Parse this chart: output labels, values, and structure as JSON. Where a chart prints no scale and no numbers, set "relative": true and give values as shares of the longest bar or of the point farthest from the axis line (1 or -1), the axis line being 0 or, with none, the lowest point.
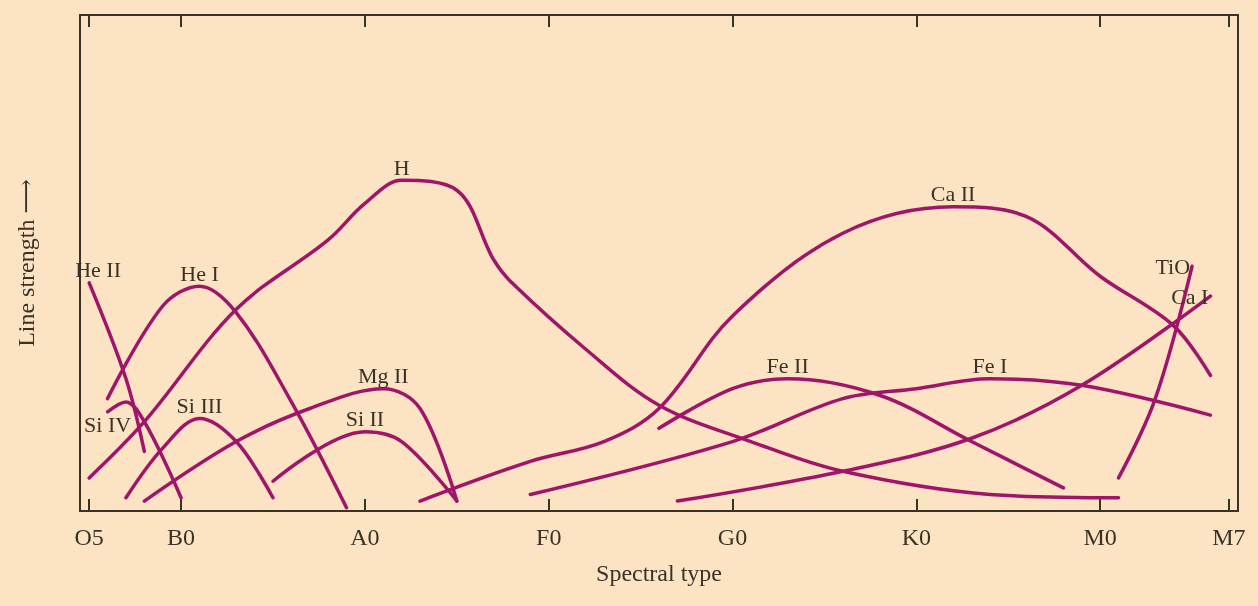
{
  "chart_data": {
    "type": "line",
    "relative": true,
    "xlabel": "Spectral type",
    "ylabel": "Line strength ⟶",
    "categories": [
      "O5",
      null,
      null,
      null,
      null,
      "B0",
      null,
      null,
      null,
      null,
      null,
      null,
      null,
      null,
      null,
      "A0",
      null,
      null,
      null,
      null,
      null,
      null,
      null,
      null,
      null,
      "F0",
      null,
      null,
      null,
      null,
      null,
      null,
      null,
      null,
      null,
      "G0",
      null,
      null,
      null,
      null,
      null,
      null,
      null,
      null,
      null,
      "K0",
      null,
      null,
      null,
      null,
      null,
      null,
      null,
      null,
      null,
      "M0",
      null,
      null,
      null,
      null,
      null,
      null,
      "M7"
    ],
    "grid": false,
    "legend": false,
    "line_style": "solid",
    "marker": "none",
    "series": [
      {
        "name": "He II",
        "color": "#a0146a",
        "values": [
          0.69,
          null,
          0.4,
          0.18,
          null,
          null,
          null,
          null,
          null,
          null,
          null,
          null,
          null,
          null,
          null,
          null,
          null,
          null,
          null,
          null,
          null,
          null,
          null,
          null,
          null,
          null,
          null,
          null,
          null,
          null,
          null,
          null,
          null,
          null,
          null,
          null,
          null,
          null,
          null,
          null,
          null,
          null,
          null,
          null,
          null,
          null,
          null,
          null,
          null,
          null,
          null,
          null,
          null,
          null,
          null,
          null,
          null,
          null,
          null,
          null,
          null,
          null,
          null
        ]
      },
      {
        "name": "He I",
        "color": "#a0146a",
        "values": [
          null,
          0.34,
          null,
          null,
          0.62,
          null,
          0.68,
          null,
          0.6,
          null,
          null,
          0.33,
          null,
          null,
          0.01,
          null,
          null,
          null,
          null,
          null,
          null,
          null,
          null,
          null,
          null,
          null,
          null,
          null,
          null,
          null,
          null,
          null,
          null,
          null,
          null,
          null,
          null,
          null,
          null,
          null,
          null,
          null,
          null,
          null,
          null,
          null,
          null,
          null,
          null,
          null,
          null,
          null,
          null,
          null,
          null,
          null,
          null,
          null,
          null,
          null,
          null,
          null,
          null
        ]
      },
      {
        "name": "H",
        "color": "#a0146a",
        "values": [
          0.1,
          null,
          null,
          0.27,
          null,
          null,
          null,
          null,
          0.61,
          null,
          null,
          null,
          null,
          0.82,
          null,
          0.93,
          null,
          1,
          null,
          null,
          0.97,
          null,
          0.76,
          0.69,
          null,
          null,
          null,
          0.49,
          null,
          null,
          null,
          0.32,
          null,
          null,
          null,
          null,
          0.21,
          null,
          null,
          null,
          null,
          0.12,
          null,
          null,
          null,
          null,
          null,
          null,
          null,
          0.05,
          null,
          null,
          null,
          null,
          null,
          null,
          0.04,
          null,
          null,
          null,
          null,
          null,
          null
        ]
      },
      {
        "name": "Si IV",
        "color": "#a0146a",
        "values": [
          null,
          0.3,
          0.33,
          0.27,
          null,
          0.04,
          null,
          null,
          null,
          null,
          null,
          null,
          null,
          null,
          null,
          null,
          null,
          null,
          null,
          null,
          null,
          null,
          null,
          null,
          null,
          null,
          null,
          null,
          null,
          null,
          null,
          null,
          null,
          null,
          null,
          null,
          null,
          null,
          null,
          null,
          null,
          null,
          null,
          null,
          null,
          null,
          null,
          null,
          null,
          null,
          null,
          null,
          null,
          null,
          null,
          null,
          null,
          null,
          null,
          null,
          null,
          null,
          null
        ]
      },
      {
        "name": "Si III",
        "color": "#a0146a",
        "values": [
          null,
          null,
          0.04,
          null,
          0.19,
          null,
          0.28,
          null,
          0.21,
          null,
          0.04,
          null,
          null,
          null,
          null,
          null,
          null,
          null,
          null,
          null,
          null,
          null,
          null,
          null,
          null,
          null,
          null,
          null,
          null,
          null,
          null,
          null,
          null,
          null,
          null,
          null,
          null,
          null,
          null,
          null,
          null,
          null,
          null,
          null,
          null,
          null,
          null,
          null,
          null,
          null,
          null,
          null,
          null,
          null,
          null,
          null,
          null,
          null,
          null,
          null,
          null,
          null,
          null
        ]
      },
      {
        "name": "Mg II",
        "color": "#a0146a",
        "values": [
          null,
          null,
          null,
          0.03,
          null,
          null,
          null,
          null,
          0.21,
          null,
          null,
          null,
          0.31,
          null,
          null,
          null,
          0.37,
          null,
          0.31,
          null,
          0.03,
          null,
          null,
          null,
          null,
          null,
          null,
          null,
          null,
          null,
          null,
          null,
          null,
          null,
          null,
          null,
          null,
          null,
          null,
          null,
          null,
          null,
          null,
          null,
          null,
          null,
          null,
          null,
          null,
          null,
          null,
          null,
          null,
          null,
          null,
          null,
          null,
          null,
          null,
          null,
          null,
          null,
          null
        ]
      },
      {
        "name": "Si II",
        "color": "#a0146a",
        "values": [
          null,
          null,
          null,
          null,
          null,
          null,
          null,
          null,
          null,
          null,
          0.09,
          null,
          null,
          null,
          null,
          0.24,
          null,
          0.21,
          null,
          null,
          0.03,
          null,
          null,
          null,
          null,
          null,
          null,
          null,
          null,
          null,
          null,
          null,
          null,
          null,
          null,
          null,
          null,
          null,
          null,
          null,
          null,
          null,
          null,
          null,
          null,
          null,
          null,
          null,
          null,
          null,
          null,
          null,
          null,
          null,
          null,
          null,
          null,
          null,
          null,
          null,
          null,
          null,
          null
        ]
      },
      {
        "name": "Ca II",
        "color": "#a0146a",
        "values": [
          null,
          null,
          null,
          null,
          null,
          null,
          null,
          null,
          null,
          null,
          null,
          null,
          null,
          null,
          null,
          null,
          null,
          null,
          0.03,
          null,
          null,
          null,
          null,
          null,
          0.15,
          null,
          null,
          null,
          0.21,
          null,
          null,
          0.31,
          null,
          null,
          null,
          0.59,
          null,
          null,
          null,
          null,
          null,
          0.84,
          null,
          null,
          null,
          null,
          null,
          0.92,
          null,
          null,
          null,
          0.89,
          null,
          null,
          null,
          0.71,
          null,
          null,
          null,
          0.56,
          null,
          0.41,
          null
        ]
      },
      {
        "name": "Fe II",
        "color": "#a0146a",
        "values": [
          null,
          null,
          null,
          null,
          null,
          null,
          null,
          null,
          null,
          null,
          null,
          null,
          null,
          null,
          null,
          null,
          null,
          null,
          null,
          null,
          null,
          null,
          null,
          null,
          null,
          null,
          null,
          null,
          null,
          null,
          null,
          0.25,
          null,
          null,
          null,
          0.37,
          null,
          null,
          0.4,
          null,
          null,
          null,
          null,
          0.35,
          null,
          null,
          null,
          null,
          0.21,
          null,
          null,
          null,
          null,
          0.07,
          null,
          null,
          null,
          null,
          null,
          null,
          null,
          null,
          null
        ]
      },
      {
        "name": "Fe I",
        "color": "#a0146a",
        "values": [
          null,
          null,
          null,
          null,
          null,
          null,
          null,
          null,
          null,
          null,
          null,
          null,
          null,
          null,
          null,
          null,
          null,
          null,
          null,
          null,
          null,
          null,
          null,
          null,
          0.05,
          null,
          null,
          null,
          null,
          null,
          null,
          null,
          null,
          null,
          null,
          0.21,
          null,
          null,
          null,
          null,
          null,
          0.34,
          null,
          null,
          null,
          0.37,
          null,
          null,
          null,
          0.4,
          null,
          null,
          null,
          null,
          0.38,
          null,
          null,
          null,
          null,
          null,
          null,
          0.29,
          null
        ]
      },
      {
        "name": "Ca I",
        "color": "#a0146a",
        "values": [
          null,
          null,
          null,
          null,
          null,
          null,
          null,
          null,
          null,
          null,
          null,
          null,
          null,
          null,
          null,
          null,
          null,
          null,
          null,
          null,
          null,
          null,
          null,
          null,
          null,
          null,
          null,
          null,
          null,
          null,
          null,
          null,
          0.03,
          null,
          null,
          null,
          null,
          null,
          null,
          null,
          null,
          0.12,
          null,
          null,
          null,
          null,
          null,
          null,
          0.22,
          null,
          null,
          null,
          null,
          null,
          0.38,
          null,
          null,
          null,
          null,
          null,
          null,
          0.65,
          null
        ]
      },
      {
        "name": "TiO",
        "color": "#a0146a",
        "values": [
          null,
          null,
          null,
          null,
          null,
          null,
          null,
          null,
          null,
          null,
          null,
          null,
          null,
          null,
          null,
          null,
          null,
          null,
          null,
          null,
          null,
          null,
          null,
          null,
          null,
          null,
          null,
          null,
          null,
          null,
          null,
          null,
          null,
          null,
          null,
          null,
          null,
          null,
          null,
          null,
          null,
          null,
          null,
          null,
          null,
          null,
          null,
          null,
          null,
          null,
          null,
          null,
          null,
          null,
          null,
          null,
          0.1,
          null,
          0.34,
          null,
          0.74,
          null,
          null
        ]
      }
    ]
  }
}
